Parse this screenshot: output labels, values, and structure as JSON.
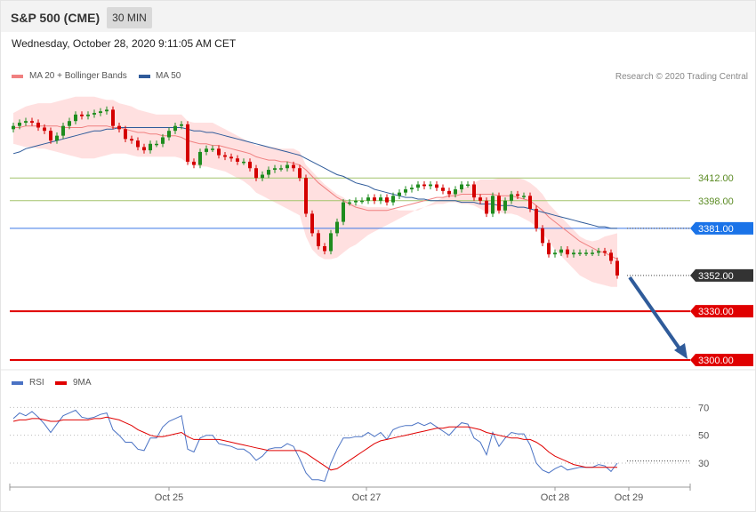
{
  "header": {
    "title": "S&P 500 (CME)",
    "timeframe": "30 MIN"
  },
  "timestamp": "Wednesday, October 28, 2020 9:11:05 AM CET",
  "legend": {
    "ma20": {
      "label": "MA 20 + Bollinger Bands",
      "color": "#f08080"
    },
    "ma50": {
      "label": "MA 50",
      "color": "#2f5b9a"
    },
    "copyright": "Research © 2020 Trading Central"
  },
  "rsi_legend": {
    "rsi": {
      "label": "RSI",
      "color": "#4a72c4"
    },
    "ma9": {
      "label": "9MA",
      "color": "#e00000"
    }
  },
  "colors": {
    "up": "#1e8c1e",
    "down": "#d40000",
    "band": "#ffd6d6"
  },
  "chart_data": [
    {
      "type": "candlestick",
      "x_ticks": [
        "Oct 25",
        "Oct 27",
        "Oct 28",
        "Oct 29"
      ],
      "ylim": [
        3298,
        3452
      ],
      "levels": [
        {
          "value": 3412.0,
          "label": "3412.00",
          "kind": "resistance"
        },
        {
          "value": 3398.0,
          "label": "3398.00",
          "kind": "resistance"
        },
        {
          "value": 3381.0,
          "label": "3381.00",
          "kind": "pivot"
        },
        {
          "value": 3352.0,
          "label": "3352.00",
          "kind": "last"
        },
        {
          "value": 3330.0,
          "label": "3330.00",
          "kind": "support"
        },
        {
          "value": 3300.0,
          "label": "3300.00",
          "kind": "support"
        }
      ],
      "close": [
        3444,
        3446,
        3447,
        3446,
        3443,
        3441,
        3435,
        3438,
        3444,
        3447,
        3451,
        3450,
        3451,
        3452,
        3453,
        3454,
        3444,
        3442,
        3436,
        3435,
        3431,
        3429,
        3433,
        3433,
        3437,
        3441,
        3444,
        3445,
        3422,
        3420,
        3428,
        3430,
        3430,
        3426,
        3425,
        3424,
        3422,
        3422,
        3418,
        3412,
        3414,
        3417,
        3418,
        3418,
        3420,
        3418,
        3412,
        3390,
        3378,
        3370,
        3367,
        3378,
        3385,
        3397,
        3397,
        3398,
        3398,
        3400,
        3398,
        3400,
        3397,
        3401,
        3403,
        3405,
        3406,
        3408,
        3407,
        3408,
        3406,
        3404,
        3402,
        3405,
        3408,
        3408,
        3400,
        3398,
        3390,
        3401,
        3392,
        3398,
        3402,
        3401,
        3401,
        3393,
        3381,
        3372,
        3365,
        3366,
        3368,
        3365,
        3366,
        3366,
        3366,
        3366,
        3367,
        3366,
        3361,
        3352
      ],
      "ma20_upper": [
        3452,
        3454,
        3456,
        3457,
        3458,
        3458,
        3458,
        3459,
        3460,
        3461,
        3462,
        3462,
        3462,
        3462,
        3461,
        3460,
        3460,
        3458,
        3457,
        3456,
        3454,
        3453,
        3452,
        3451,
        3451,
        3451,
        3451,
        3451,
        3447,
        3446,
        3446,
        3446,
        3446,
        3444,
        3442,
        3440,
        3438,
        3436,
        3434,
        3432,
        3432,
        3431,
        3431,
        3430,
        3430,
        3430,
        3428,
        3420,
        3416,
        3412,
        3408,
        3405,
        3402,
        3400,
        3397,
        3396,
        3395,
        3394,
        3394,
        3394,
        3394,
        3393,
        3392,
        3392,
        3392,
        3392,
        3394,
        3396,
        3398,
        3400,
        3402,
        3404,
        3405,
        3407,
        3409,
        3411,
        3411,
        3411,
        3412,
        3412,
        3412,
        3412,
        3411,
        3409,
        3406,
        3402,
        3396,
        3392,
        3388,
        3384,
        3380,
        3376,
        3374,
        3373,
        3374,
        3376,
        3377,
        3378
      ],
      "ma20_mid": [
        3443,
        3443,
        3444,
        3444,
        3444,
        3444,
        3444,
        3444,
        3443,
        3443,
        3443,
        3443,
        3444,
        3444,
        3444,
        3444,
        3443,
        3443,
        3442,
        3441,
        3440,
        3440,
        3439,
        3439,
        3438,
        3438,
        3438,
        3437,
        3435,
        3434,
        3433,
        3433,
        3432,
        3432,
        3431,
        3430,
        3429,
        3428,
        3427,
        3425,
        3424,
        3423,
        3423,
        3422,
        3422,
        3421,
        3420,
        3417,
        3413,
        3409,
        3406,
        3403,
        3400,
        3398,
        3396,
        3394,
        3393,
        3392,
        3392,
        3392,
        3392,
        3393,
        3394,
        3395,
        3396,
        3397,
        3398,
        3399,
        3400,
        3400,
        3401,
        3401,
        3402,
        3402,
        3402,
        3402,
        3402,
        3402,
        3401,
        3401,
        3401,
        3400,
        3399,
        3398,
        3395,
        3392,
        3388,
        3385,
        3382,
        3379,
        3376,
        3373,
        3371,
        3369,
        3367,
        3366,
        3364,
        3362
      ],
      "ma20_lower": [
        3433,
        3432,
        3431,
        3431,
        3430,
        3430,
        3429,
        3428,
        3427,
        3426,
        3425,
        3424,
        3424,
        3424,
        3425,
        3426,
        3427,
        3427,
        3427,
        3426,
        3425,
        3425,
        3425,
        3425,
        3425,
        3425,
        3425,
        3424,
        3421,
        3420,
        3419,
        3419,
        3418,
        3417,
        3416,
        3414,
        3412,
        3410,
        3407,
        3403,
        3401,
        3399,
        3397,
        3395,
        3393,
        3391,
        3389,
        3376,
        3368,
        3364,
        3362,
        3362,
        3363,
        3366,
        3369,
        3371,
        3374,
        3377,
        3379,
        3381,
        3383,
        3385,
        3387,
        3389,
        3391,
        3393,
        3394,
        3395,
        3396,
        3396,
        3397,
        3397,
        3396,
        3396,
        3395,
        3393,
        3391,
        3391,
        3391,
        3390,
        3390,
        3389,
        3387,
        3385,
        3382,
        3378,
        3373,
        3368,
        3364,
        3360,
        3356,
        3352,
        3350,
        3348,
        3347,
        3346,
        3345,
        3345
      ],
      "ma50": [
        3427,
        3428,
        3430,
        3431,
        3432,
        3433,
        3434,
        3435,
        3436,
        3437,
        3438,
        3439,
        3440,
        3441,
        3441,
        3442,
        3442,
        3443,
        3443,
        3443,
        3443,
        3443,
        3443,
        3443,
        3443,
        3443,
        3443,
        3443,
        3442,
        3441,
        3441,
        3440,
        3440,
        3439,
        3438,
        3437,
        3436,
        3435,
        3434,
        3433,
        3432,
        3431,
        3430,
        3429,
        3428,
        3427,
        3426,
        3424,
        3422,
        3420,
        3418,
        3416,
        3414,
        3413,
        3411,
        3409,
        3408,
        3407,
        3405,
        3404,
        3403,
        3402,
        3401,
        3400,
        3400,
        3399,
        3399,
        3398,
        3398,
        3398,
        3398,
        3398,
        3397,
        3397,
        3397,
        3396,
        3396,
        3396,
        3395,
        3395,
        3395,
        3394,
        3394,
        3393,
        3392,
        3391,
        3390,
        3389,
        3388,
        3387,
        3386,
        3385,
        3384,
        3383,
        3382,
        3382,
        3381,
        3381
      ]
    },
    {
      "type": "line",
      "ylim": [
        14,
        87
      ],
      "gridlines": [
        70,
        50,
        30
      ],
      "series": [
        {
          "name": "RSI",
          "values": [
            62,
            66,
            64,
            67,
            63,
            58,
            52,
            58,
            64,
            66,
            68,
            63,
            62,
            63,
            65,
            66,
            54,
            50,
            45,
            45,
            40,
            39,
            48,
            48,
            56,
            60,
            62,
            64,
            40,
            38,
            48,
            50,
            50,
            44,
            43,
            42,
            40,
            40,
            37,
            32,
            35,
            40,
            41,
            41,
            44,
            42,
            33,
            23,
            18,
            18,
            17,
            30,
            40,
            48,
            48,
            49,
            49,
            52,
            49,
            52,
            47,
            54,
            56,
            57,
            57,
            59,
            57,
            59,
            56,
            53,
            50,
            55,
            59,
            58,
            48,
            45,
            36,
            52,
            42,
            48,
            52,
            51,
            51,
            43,
            30,
            25,
            23,
            26,
            28,
            25,
            26,
            27,
            27,
            27,
            29,
            28,
            24,
            30
          ]
        },
        {
          "name": "9MA",
          "values": [
            60,
            61,
            61,
            62,
            62,
            61,
            60,
            60,
            61,
            61,
            61,
            61,
            61,
            62,
            62,
            63,
            62,
            61,
            59,
            57,
            54,
            52,
            50,
            49,
            49,
            50,
            51,
            52,
            49,
            47,
            47,
            47,
            47,
            47,
            46,
            45,
            44,
            43,
            42,
            41,
            40,
            39,
            39,
            39,
            39,
            39,
            39,
            37,
            34,
            31,
            28,
            25,
            26,
            29,
            32,
            35,
            38,
            41,
            44,
            46,
            47,
            48,
            49,
            50,
            51,
            52,
            53,
            54,
            55,
            55,
            56,
            56,
            56,
            56,
            55,
            54,
            52,
            51,
            50,
            49,
            48,
            48,
            47,
            47,
            45,
            42,
            38,
            35,
            33,
            31,
            29,
            28,
            27,
            27,
            27,
            27,
            27,
            27
          ]
        }
      ],
      "levels": [
        {
          "value": 30,
          "kind": "last"
        }
      ]
    }
  ]
}
